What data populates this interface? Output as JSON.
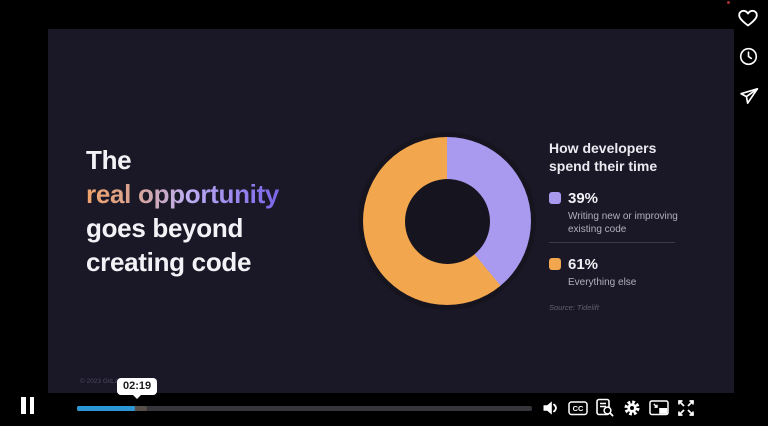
{
  "slide": {
    "bg": "#1a1826",
    "title_lines": [
      "The",
      "real opportunity",
      "goes beyond",
      "creating code"
    ],
    "title_gradient": [
      "#efa36c",
      "#d8a291",
      "#bfb0f2",
      "#7a63e8"
    ],
    "footer": "© 2023 GitLab",
    "legend": {
      "title_lines": [
        "How developers",
        "spend their time"
      ],
      "items": [
        {
          "value": "39%",
          "description": "Writing new or improving existing code",
          "color": "#a99af0"
        },
        {
          "value": "61%",
          "description": "Everything else",
          "color": "#f2a64d"
        }
      ],
      "source": "Source: Tidelift"
    }
  },
  "chart_data": {
    "type": "pie",
    "donut": true,
    "title": "How developers spend their time",
    "categories": [
      "Writing new or improving existing code",
      "Everything else"
    ],
    "values": [
      39,
      61
    ],
    "colors": [
      "#a99af0",
      "#f2a64d"
    ],
    "start_angle_deg": 0,
    "direction": "clockwise",
    "legend_position": "right"
  },
  "player": {
    "state": "playing",
    "time_tooltip": "02:19",
    "progress_pct": 12.7,
    "buffer_pct": 15.4,
    "progress_color": "#2d97d5",
    "captions_label": "CC",
    "controls": [
      "pause",
      "volume",
      "captions",
      "transcript",
      "settings",
      "picture-in-picture",
      "fullscreen"
    ]
  },
  "side_rail": {
    "icons": [
      "like",
      "watch-later",
      "share"
    ]
  }
}
